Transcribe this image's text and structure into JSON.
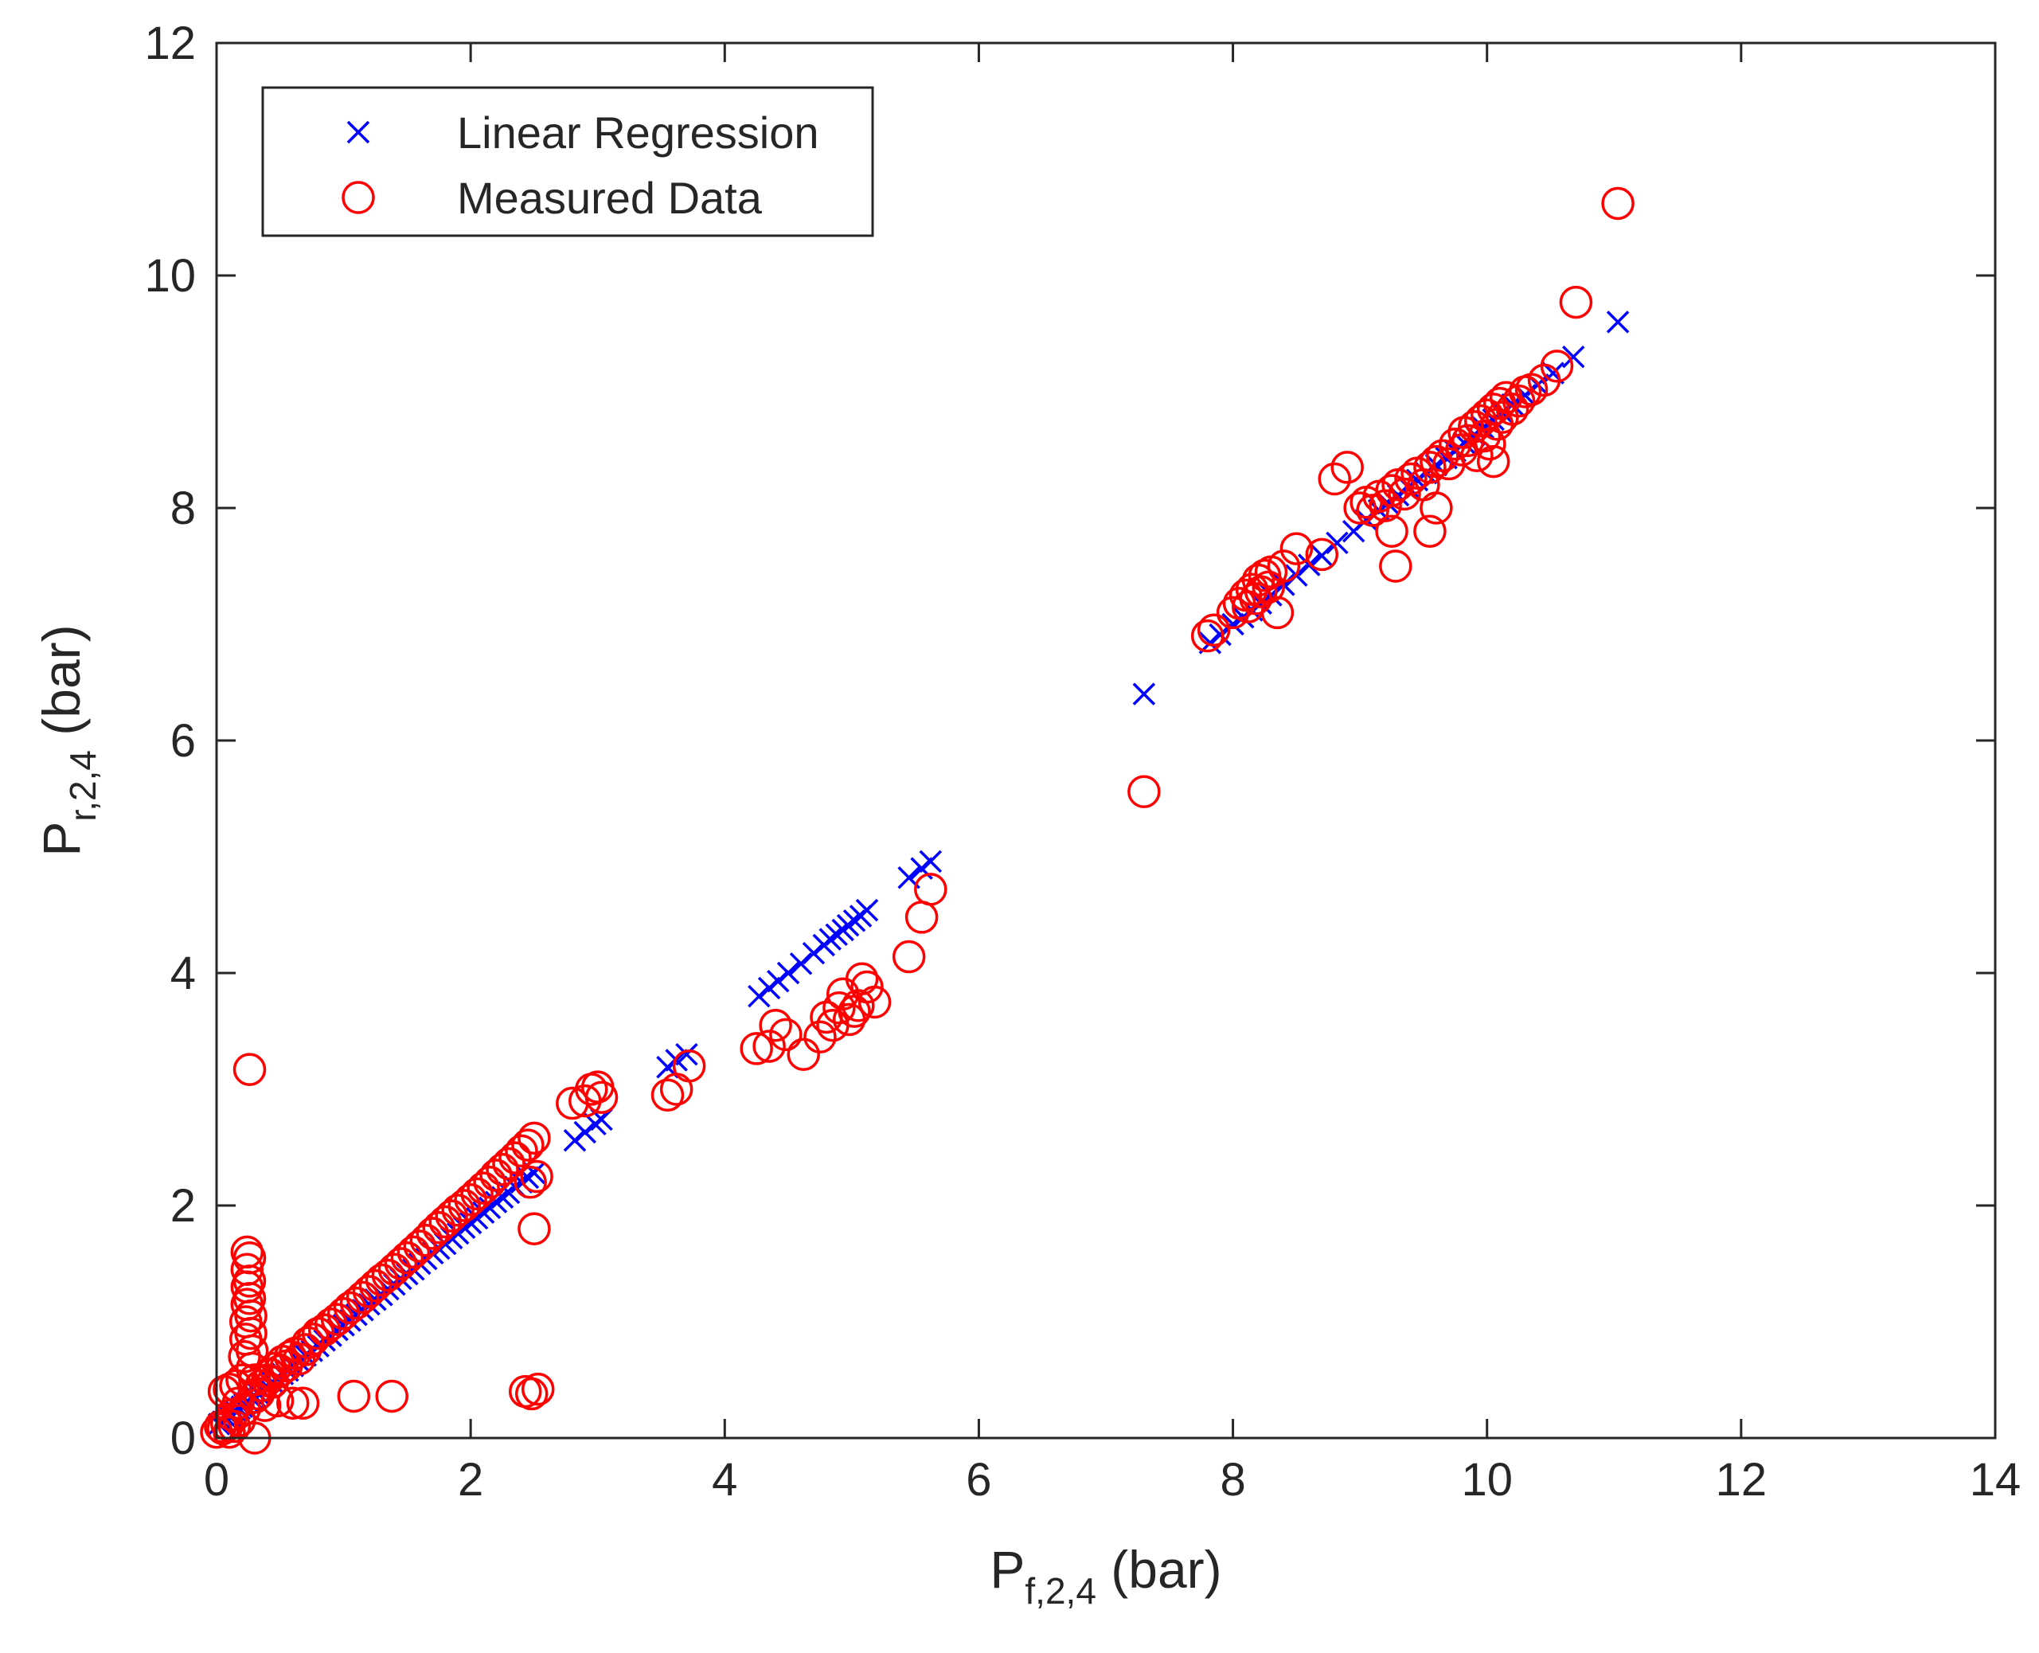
{
  "chart_data": {
    "type": "scatter",
    "title": "",
    "xlabel": {
      "main": "P",
      "sub": "f,2,4",
      "unit": " (bar)"
    },
    "ylabel": {
      "main": "P",
      "sub": "r,2,4",
      "unit": " (bar)"
    },
    "xlim": [
      0,
      14
    ],
    "ylim": [
      0,
      12
    ],
    "xticks": [
      0,
      2,
      4,
      6,
      8,
      10,
      12,
      14
    ],
    "yticks": [
      0,
      2,
      4,
      6,
      8,
      10,
      12
    ],
    "grid": false,
    "legend_position": "top-left",
    "series": [
      {
        "name": "Linear Regression",
        "marker": "x",
        "color": "#0000ff",
        "points": [
          [
            0.02,
            0.12
          ],
          [
            0.05,
            0.14
          ],
          [
            0.08,
            0.17
          ],
          [
            0.1,
            0.19
          ],
          [
            0.12,
            0.2
          ],
          [
            0.15,
            0.23
          ],
          [
            0.18,
            0.25
          ],
          [
            0.2,
            0.27
          ],
          [
            0.22,
            0.29
          ],
          [
            0.25,
            0.31
          ],
          [
            0.28,
            0.34
          ],
          [
            0.3,
            0.36
          ],
          [
            0.33,
            0.38
          ],
          [
            0.36,
            0.41
          ],
          [
            0.4,
            0.44
          ],
          [
            0.44,
            0.48
          ],
          [
            0.48,
            0.51
          ],
          [
            0.52,
            0.55
          ],
          [
            0.56,
            0.58
          ],
          [
            0.6,
            0.62
          ],
          [
            0.65,
            0.66
          ],
          [
            0.7,
            0.71
          ],
          [
            0.75,
            0.75
          ],
          [
            0.8,
            0.79
          ],
          [
            0.85,
            0.84
          ],
          [
            0.9,
            0.88
          ],
          [
            0.95,
            0.93
          ],
          [
            1.0,
            0.97
          ],
          [
            1.05,
            1.01
          ],
          [
            1.1,
            1.06
          ],
          [
            1.15,
            1.1
          ],
          [
            1.2,
            1.15
          ],
          [
            1.25,
            1.19
          ],
          [
            1.3,
            1.23
          ],
          [
            1.35,
            1.28
          ],
          [
            1.4,
            1.32
          ],
          [
            1.45,
            1.37
          ],
          [
            1.5,
            1.41
          ],
          [
            1.55,
            1.45
          ],
          [
            1.6,
            1.5
          ],
          [
            1.65,
            1.54
          ],
          [
            1.7,
            1.59
          ],
          [
            1.75,
            1.63
          ],
          [
            1.8,
            1.67
          ],
          [
            1.85,
            1.72
          ],
          [
            1.9,
            1.76
          ],
          [
            1.95,
            1.81
          ],
          [
            2.0,
            1.85
          ],
          [
            2.05,
            1.89
          ],
          [
            2.1,
            1.94
          ],
          [
            2.15,
            1.98
          ],
          [
            2.2,
            2.03
          ],
          [
            2.25,
            2.07
          ],
          [
            2.3,
            2.11
          ],
          [
            2.35,
            2.16
          ],
          [
            2.4,
            2.2
          ],
          [
            2.45,
            2.24
          ],
          [
            2.5,
            2.28
          ],
          [
            2.82,
            2.56
          ],
          [
            2.9,
            2.63
          ],
          [
            2.98,
            2.7
          ],
          [
            3.03,
            2.74
          ],
          [
            3.55,
            3.19
          ],
          [
            3.62,
            3.25
          ],
          [
            3.7,
            3.3
          ],
          [
            4.27,
            3.8
          ],
          [
            4.35,
            3.87
          ],
          [
            4.42,
            3.93
          ],
          [
            4.5,
            4.0
          ],
          [
            4.6,
            4.08
          ],
          [
            4.7,
            4.17
          ],
          [
            4.78,
            4.24
          ],
          [
            4.83,
            4.29
          ],
          [
            4.88,
            4.33
          ],
          [
            4.93,
            4.37
          ],
          [
            4.97,
            4.41
          ],
          [
            5.02,
            4.45
          ],
          [
            5.07,
            4.49
          ],
          [
            5.12,
            4.54
          ],
          [
            5.45,
            4.82
          ],
          [
            5.55,
            4.9
          ],
          [
            5.62,
            4.96
          ],
          [
            7.3,
            6.4
          ],
          [
            7.82,
            6.84
          ],
          [
            7.9,
            6.91
          ],
          [
            8.0,
            7.0
          ],
          [
            8.08,
            7.06
          ],
          [
            8.15,
            7.12
          ],
          [
            8.22,
            7.18
          ],
          [
            8.3,
            7.25
          ],
          [
            8.4,
            7.34
          ],
          [
            8.5,
            7.42
          ],
          [
            8.6,
            7.51
          ],
          [
            8.7,
            7.59
          ],
          [
            8.82,
            7.7
          ],
          [
            8.95,
            7.8
          ],
          [
            9.05,
            7.9
          ],
          [
            9.15,
            7.98
          ],
          [
            9.22,
            8.04
          ],
          [
            9.3,
            8.11
          ],
          [
            9.38,
            8.18
          ],
          [
            9.45,
            8.24
          ],
          [
            9.52,
            8.3
          ],
          [
            9.6,
            8.37
          ],
          [
            9.68,
            8.43
          ],
          [
            9.75,
            8.49
          ],
          [
            9.82,
            8.56
          ],
          [
            9.9,
            8.63
          ],
          [
            9.97,
            8.69
          ],
          [
            10.05,
            8.76
          ],
          [
            10.12,
            8.82
          ],
          [
            10.2,
            8.89
          ],
          [
            10.3,
            8.97
          ],
          [
            10.4,
            9.06
          ],
          [
            10.52,
            9.16
          ],
          [
            10.68,
            9.3
          ],
          [
            11.03,
            9.6
          ]
        ]
      },
      {
        "name": "Measured Data",
        "marker": "o",
        "color": "#ff0000",
        "points": [
          [
            0.0,
            0.05
          ],
          [
            0.03,
            0.1
          ],
          [
            0.05,
            0.08
          ],
          [
            0.06,
            0.4
          ],
          [
            0.08,
            0.12
          ],
          [
            0.1,
            0.05
          ],
          [
            0.1,
            0.42
          ],
          [
            0.12,
            0.2
          ],
          [
            0.14,
            0.1
          ],
          [
            0.15,
            0.45
          ],
          [
            0.17,
            0.3
          ],
          [
            0.18,
            0.15
          ],
          [
            0.2,
            0.5
          ],
          [
            0.22,
            0.25
          ],
          [
            0.22,
            0.7
          ],
          [
            0.23,
            0.85
          ],
          [
            0.23,
            1.0
          ],
          [
            0.24,
            1.15
          ],
          [
            0.24,
            1.3
          ],
          [
            0.24,
            1.45
          ],
          [
            0.24,
            1.6
          ],
          [
            0.26,
            1.55
          ],
          [
            0.26,
            1.35
          ],
          [
            0.26,
            1.2
          ],
          [
            0.26,
            3.17
          ],
          [
            0.27,
            1.05
          ],
          [
            0.27,
            0.9
          ],
          [
            0.28,
            0.75
          ],
          [
            0.28,
            0.6
          ],
          [
            0.3,
            0.35
          ],
          [
            0.3,
            0.5
          ],
          [
            0.3,
            0.0
          ],
          [
            0.33,
            0.38
          ],
          [
            0.35,
            0.45
          ],
          [
            0.38,
            0.28
          ],
          [
            0.4,
            0.5
          ],
          [
            0.42,
            0.55
          ],
          [
            0.44,
            0.48
          ],
          [
            0.46,
            0.6
          ],
          [
            0.48,
            0.32
          ],
          [
            0.5,
            0.58
          ],
          [
            0.52,
            0.66
          ],
          [
            0.55,
            0.62
          ],
          [
            0.58,
            0.7
          ],
          [
            0.6,
            0.3
          ],
          [
            0.62,
            0.73
          ],
          [
            0.65,
            0.68
          ],
          [
            0.68,
            0.3
          ],
          [
            0.7,
            0.76
          ],
          [
            0.72,
            0.82
          ],
          [
            0.76,
            0.85
          ],
          [
            0.8,
            0.9
          ],
          [
            0.85,
            0.93
          ],
          [
            0.9,
            0.98
          ],
          [
            0.95,
            1.02
          ],
          [
            1.0,
            1.07
          ],
          [
            1.05,
            1.12
          ],
          [
            1.08,
            0.36
          ],
          [
            1.1,
            1.16
          ],
          [
            1.15,
            1.21
          ],
          [
            1.2,
            1.26
          ],
          [
            1.25,
            1.31
          ],
          [
            1.3,
            1.36
          ],
          [
            1.35,
            1.4
          ],
          [
            1.38,
            0.36
          ],
          [
            1.4,
            1.45
          ],
          [
            1.45,
            1.5
          ],
          [
            1.5,
            1.55
          ],
          [
            1.55,
            1.6
          ],
          [
            1.6,
            1.65
          ],
          [
            1.65,
            1.7
          ],
          [
            1.7,
            1.76
          ],
          [
            1.75,
            1.81
          ],
          [
            1.8,
            1.86
          ],
          [
            1.85,
            1.91
          ],
          [
            1.9,
            1.96
          ],
          [
            1.95,
            2.0
          ],
          [
            2.0,
            2.05
          ],
          [
            2.05,
            2.1
          ],
          [
            2.1,
            2.15
          ],
          [
            2.15,
            2.2
          ],
          [
            2.2,
            2.26
          ],
          [
            2.25,
            2.31
          ],
          [
            2.3,
            2.36
          ],
          [
            2.35,
            2.41
          ],
          [
            2.4,
            2.47
          ],
          [
            2.43,
            0.4
          ],
          [
            2.45,
            2.52
          ],
          [
            2.47,
            2.2
          ],
          [
            2.48,
            0.38
          ],
          [
            2.5,
            2.58
          ],
          [
            2.5,
            1.8
          ],
          [
            2.52,
            2.25
          ],
          [
            2.53,
            0.42
          ],
          [
            2.8,
            2.88
          ],
          [
            2.9,
            2.9
          ],
          [
            2.95,
            3.0
          ],
          [
            3.0,
            3.02
          ],
          [
            3.03,
            2.93
          ],
          [
            3.55,
            2.95
          ],
          [
            3.62,
            3.0
          ],
          [
            3.72,
            3.2
          ],
          [
            4.25,
            3.35
          ],
          [
            4.35,
            3.37
          ],
          [
            4.4,
            3.55
          ],
          [
            4.48,
            3.47
          ],
          [
            4.62,
            3.3
          ],
          [
            4.75,
            3.45
          ],
          [
            4.8,
            3.62
          ],
          [
            4.85,
            3.55
          ],
          [
            4.9,
            3.7
          ],
          [
            4.93,
            3.82
          ],
          [
            4.98,
            3.6
          ],
          [
            5.02,
            3.67
          ],
          [
            5.05,
            3.72
          ],
          [
            5.08,
            3.95
          ],
          [
            5.12,
            3.88
          ],
          [
            5.18,
            3.75
          ],
          [
            5.45,
            4.14
          ],
          [
            5.55,
            4.48
          ],
          [
            5.62,
            4.72
          ],
          [
            7.3,
            5.56
          ],
          [
            7.8,
            6.9
          ],
          [
            7.85,
            6.95
          ],
          [
            8.0,
            7.1
          ],
          [
            8.05,
            7.18
          ],
          [
            8.1,
            7.25
          ],
          [
            8.12,
            7.15
          ],
          [
            8.15,
            7.3
          ],
          [
            8.18,
            7.22
          ],
          [
            8.2,
            7.38
          ],
          [
            8.22,
            7.28
          ],
          [
            8.25,
            7.42
          ],
          [
            8.28,
            7.32
          ],
          [
            8.3,
            7.45
          ],
          [
            8.35,
            7.1
          ],
          [
            8.4,
            7.5
          ],
          [
            8.5,
            7.65
          ],
          [
            8.7,
            7.6
          ],
          [
            8.8,
            8.25
          ],
          [
            8.9,
            8.35
          ],
          [
            9.0,
            8.0
          ],
          [
            9.05,
            8.05
          ],
          [
            9.1,
            7.98
          ],
          [
            9.15,
            8.1
          ],
          [
            9.2,
            8.02
          ],
          [
            9.25,
            8.15
          ],
          [
            9.25,
            7.8
          ],
          [
            9.28,
            7.5
          ],
          [
            9.3,
            8.2
          ],
          [
            9.35,
            8.12
          ],
          [
            9.4,
            8.25
          ],
          [
            9.45,
            8.3
          ],
          [
            9.5,
            8.2
          ],
          [
            9.55,
            8.35
          ],
          [
            9.55,
            7.8
          ],
          [
            9.6,
            8.4
          ],
          [
            9.6,
            8.0
          ],
          [
            9.65,
            8.45
          ],
          [
            9.7,
            8.38
          ],
          [
            9.75,
            8.55
          ],
          [
            9.8,
            8.5
          ],
          [
            9.82,
            8.65
          ],
          [
            9.85,
            8.58
          ],
          [
            9.9,
            8.7
          ],
          [
            9.92,
            8.45
          ],
          [
            9.95,
            8.75
          ],
          [
            9.98,
            8.62
          ],
          [
            10.0,
            8.8
          ],
          [
            10.02,
            8.55
          ],
          [
            10.05,
            8.85
          ],
          [
            10.05,
            8.4
          ],
          [
            10.08,
            8.72
          ],
          [
            10.1,
            8.9
          ],
          [
            10.12,
            8.78
          ],
          [
            10.15,
            8.95
          ],
          [
            10.2,
            8.85
          ],
          [
            10.25,
            8.92
          ],
          [
            10.3,
            9.0
          ],
          [
            10.35,
            9.02
          ],
          [
            10.45,
            9.1
          ],
          [
            10.55,
            9.22
          ],
          [
            10.7,
            9.77
          ],
          [
            11.03,
            10.62
          ]
        ]
      }
    ]
  }
}
